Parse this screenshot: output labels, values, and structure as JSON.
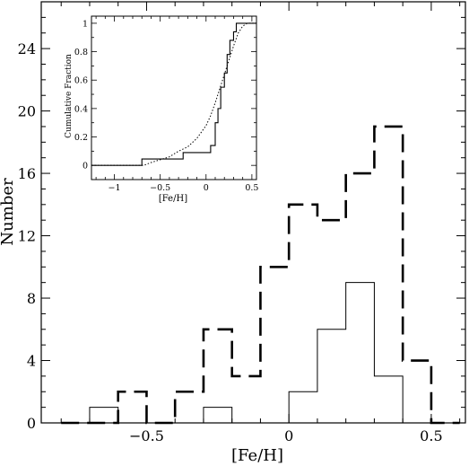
{
  "chart_data": [
    {
      "type": "histogram",
      "xlabel": "[Fe/H]",
      "ylabel": "Number",
      "xlim": [
        -0.87,
        0.62
      ],
      "ylim": [
        0,
        27
      ],
      "xticks_major": [
        -0.5,
        0,
        0.5
      ],
      "yticks_major": [
        0,
        4,
        8,
        12,
        16,
        20,
        24
      ],
      "x_tick_labels": [
        "−0.5",
        "0",
        "0.5"
      ],
      "y_tick_labels": [
        "0",
        "4",
        "8",
        "12",
        "16",
        "20",
        "24"
      ],
      "bin_width": 0.1,
      "series": [
        {
          "style": "long-dashed",
          "bin_starts": [
            -0.8,
            -0.7,
            -0.6,
            -0.5,
            -0.4,
            -0.3,
            -0.2,
            -0.1,
            0.0,
            0.1,
            0.2,
            0.3,
            0.4,
            0.5
          ],
          "counts": [
            0,
            0,
            2,
            0,
            2,
            6,
            3,
            10,
            14,
            13,
            16,
            19,
            4,
            0
          ]
        },
        {
          "style": "solid",
          "bin_starts": [
            -0.8,
            -0.7,
            -0.6,
            -0.5,
            -0.4,
            -0.3,
            -0.2,
            -0.1,
            0.0,
            0.1,
            0.2,
            0.3,
            0.4,
            0.5
          ],
          "counts": [
            0,
            1,
            0,
            0,
            0,
            1,
            0,
            0,
            2,
            6,
            9,
            3,
            0,
            0
          ]
        }
      ]
    },
    {
      "type": "line",
      "title": "inset",
      "xlabel": "[Fe/H]",
      "ylabel": "Cumulative Fraction",
      "xlim": [
        -1.25,
        0.55
      ],
      "ylim": [
        -0.1,
        1.05
      ],
      "x_tick_labels": [
        "−1",
        "−0.5",
        "0",
        "0.5"
      ],
      "xticks_major": [
        -1,
        -0.5,
        0,
        0.5
      ],
      "y_tick_labels": [
        "0",
        "0.2",
        "0.4",
        "0.6",
        "0.8",
        "1"
      ],
      "yticks_major": [
        0,
        0.2,
        0.4,
        0.6,
        0.8,
        1
      ],
      "series": [
        {
          "style": "solid",
          "x": [
            -1.25,
            -0.7,
            -0.7,
            -0.25,
            -0.25,
            0.05,
            0.05,
            0.1,
            0.1,
            0.13,
            0.13,
            0.16,
            0.16,
            0.2,
            0.2,
            0.23,
            0.23,
            0.26,
            0.26,
            0.3,
            0.3,
            0.33,
            0.33,
            0.38,
            0.38,
            0.55
          ],
          "y": [
            0,
            0,
            0.045,
            0.045,
            0.09,
            0.09,
            0.14,
            0.14,
            0.3,
            0.3,
            0.4,
            0.4,
            0.55,
            0.55,
            0.65,
            0.65,
            0.78,
            0.78,
            0.88,
            0.88,
            0.94,
            0.94,
            1.0,
            1.0,
            1.0,
            1.0
          ]
        },
        {
          "style": "dotted",
          "x": [
            -1.25,
            -0.68,
            -0.6,
            -0.5,
            -0.4,
            -0.3,
            -0.2,
            -0.1,
            0.0,
            0.05,
            0.1,
            0.15,
            0.2,
            0.25,
            0.3,
            0.35,
            0.4,
            0.45,
            0.55
          ],
          "y": [
            0,
            0,
            0.02,
            0.04,
            0.06,
            0.1,
            0.13,
            0.19,
            0.28,
            0.35,
            0.44,
            0.54,
            0.64,
            0.74,
            0.84,
            0.93,
            0.98,
            1.0,
            1.0
          ]
        }
      ]
    }
  ]
}
